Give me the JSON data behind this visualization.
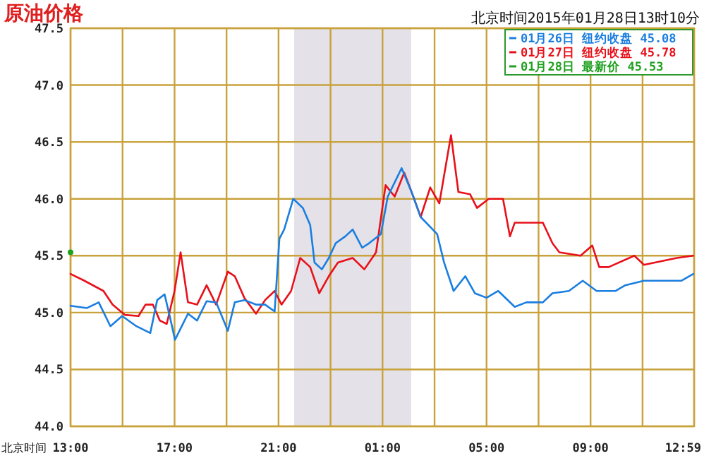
{
  "chart_data": {
    "type": "line",
    "title": "原油价格",
    "subtitle": "北京时间2015年01月28日13时10分",
    "xlabel": "北京时间",
    "xlim": [
      "2015-01-27T13:00",
      "2015-01-28T12:59"
    ],
    "xticks": [
      {
        "value": "2015-01-27T13:00",
        "label": "13:00"
      },
      {
        "value": "2015-01-27T15:00",
        "label": null
      },
      {
        "value": "2015-01-27T17:00",
        "label": "17:00"
      },
      {
        "value": "2015-01-27T19:00",
        "label": null
      },
      {
        "value": "2015-01-27T21:00",
        "label": "21:00"
      },
      {
        "value": "2015-01-27T23:00",
        "label": null
      },
      {
        "value": "2015-01-28T01:00",
        "label": "01:00"
      },
      {
        "value": "2015-01-28T03:00",
        "label": null
      },
      {
        "value": "2015-01-28T05:00",
        "label": "05:00"
      },
      {
        "value": "2015-01-28T07:00",
        "label": null
      },
      {
        "value": "2015-01-28T09:00",
        "label": "09:00"
      },
      {
        "value": "2015-01-28T11:00",
        "label": null
      },
      {
        "value": "2015-01-28T12:59",
        "label": "12:59"
      }
    ],
    "ylim": [
      44.0,
      47.5
    ],
    "yticks": [
      {
        "value": 44.0,
        "label": "44.0"
      },
      {
        "value": 44.5,
        "label": "44.5"
      },
      {
        "value": 45.0,
        "label": "45.0"
      },
      {
        "value": 45.5,
        "label": "45.5"
      },
      {
        "value": 46.0,
        "label": "46.0"
      },
      {
        "value": 46.5,
        "label": "46.5"
      },
      {
        "value": 47.0,
        "label": "47.0"
      },
      {
        "value": 47.5,
        "label": "47.5"
      }
    ],
    "grid": true,
    "legend": "top right",
    "bands": [
      {
        "axis": "x",
        "from": "2015-01-27T21:36",
        "to": "2015-01-28T02:06",
        "color": "#e4e2e8"
      }
    ],
    "series": [
      {
        "name": "01月26日 纽约收盘 45.08",
        "color": "#1a7ee0",
        "x": [
          "2015-01-27T13:00",
          "2015-01-27T13:38",
          "2015-01-27T14:05",
          "2015-01-27T14:32",
          "2015-01-27T14:59",
          "2015-01-27T15:32",
          "2015-01-27T16:04",
          "2015-01-27T16:20",
          "2015-01-27T16:37",
          "2015-01-27T16:50",
          "2015-01-27T17:01",
          "2015-01-27T17:14",
          "2015-01-27T17:31",
          "2015-01-27T17:52",
          "2015-01-27T18:14",
          "2015-01-27T18:36",
          "2015-01-27T19:03",
          "2015-01-27T19:19",
          "2015-01-27T19:41",
          "2015-01-27T20:08",
          "2015-01-27T20:29",
          "2015-01-27T20:51",
          "2015-01-27T21:02",
          "2015-01-27T21:13",
          "2015-01-27T21:34",
          "2015-01-27T21:56",
          "2015-01-27T22:13",
          "2015-01-27T22:23",
          "2015-01-27T22:40",
          "2015-01-27T22:56",
          "2015-01-27T23:12",
          "2015-01-27T23:34",
          "2015-01-27T23:51",
          "2015-01-28T00:13",
          "2015-01-28T00:29",
          "2015-01-28T00:56",
          "2015-01-28T01:12",
          "2015-01-28T01:44",
          "2015-01-28T02:07",
          "2015-01-28T02:28",
          "2015-01-28T03:06",
          "2015-01-28T03:22",
          "2015-01-28T03:44",
          "2015-01-28T04:11",
          "2015-01-28T04:33",
          "2015-01-28T05:00",
          "2015-01-28T05:27",
          "2015-01-28T06:05",
          "2015-01-28T06:32",
          "2015-01-28T07:10",
          "2015-01-28T07:32",
          "2015-01-28T08:10",
          "2015-01-28T08:42",
          "2015-01-28T09:14",
          "2015-01-28T09:58",
          "2015-01-28T10:20",
          "2015-01-28T11:03",
          "2015-01-28T12:30",
          "2015-01-28T12:57"
        ],
        "values": [
          45.06,
          45.04,
          45.09,
          44.88,
          44.97,
          44.88,
          44.82,
          45.11,
          45.16,
          44.95,
          44.76,
          44.86,
          44.99,
          44.93,
          45.1,
          45.09,
          44.84,
          45.09,
          45.11,
          45.07,
          45.07,
          45.01,
          45.65,
          45.73,
          46.0,
          45.92,
          45.77,
          45.44,
          45.38,
          45.48,
          45.61,
          45.67,
          45.73,
          45.57,
          45.61,
          45.69,
          46.02,
          46.27,
          46.06,
          45.84,
          45.69,
          45.44,
          45.19,
          45.32,
          45.17,
          45.13,
          45.19,
          45.05,
          45.09,
          45.09,
          45.17,
          45.19,
          45.28,
          45.19,
          45.19,
          45.24,
          45.28,
          45.28,
          45.34
        ]
      },
      {
        "name": "01月27日 纽约收盘 45.78",
        "color": "#e8101a",
        "x": [
          "2015-01-27T13:00",
          "2015-01-27T13:32",
          "2015-01-27T14:16",
          "2015-01-27T14:37",
          "2015-01-27T15:05",
          "2015-01-27T15:37",
          "2015-01-27T15:53",
          "2015-01-27T16:10",
          "2015-01-27T16:26",
          "2015-01-27T16:42",
          "2015-01-27T17:00",
          "2015-01-27T17:14",
          "2015-01-27T17:31",
          "2015-01-27T17:52",
          "2015-01-27T18:14",
          "2015-01-27T18:36",
          "2015-01-27T19:03",
          "2015-01-27T19:19",
          "2015-01-27T19:41",
          "2015-01-27T20:08",
          "2015-01-27T20:29",
          "2015-01-27T20:51",
          "2015-01-27T21:07",
          "2015-01-27T21:29",
          "2015-01-27T21:50",
          "2015-01-27T22:13",
          "2015-01-27T22:34",
          "2015-01-27T22:56",
          "2015-01-27T23:17",
          "2015-01-27T23:51",
          "2015-01-28T00:18",
          "2015-01-28T00:45",
          "2015-01-28T01:07",
          "2015-01-28T01:28",
          "2015-01-28T01:50",
          "2015-01-28T02:11",
          "2015-01-28T02:28",
          "2015-01-28T02:50",
          "2015-01-28T03:11",
          "2015-01-28T03:38",
          "2015-01-28T03:55",
          "2015-01-28T04:22",
          "2015-01-28T04:38",
          "2015-01-28T05:05",
          "2015-01-28T05:38",
          "2015-01-28T05:54",
          "2015-01-28T06:05",
          "2015-01-28T07:10",
          "2015-01-28T07:32",
          "2015-01-28T07:48",
          "2015-01-28T08:37",
          "2015-01-28T09:04",
          "2015-01-28T09:20",
          "2015-01-28T09:42",
          "2015-01-28T10:41",
          "2015-01-28T11:03",
          "2015-01-28T12:19",
          "2015-01-28T12:57"
        ],
        "values": [
          45.34,
          45.28,
          45.19,
          45.07,
          44.98,
          44.97,
          45.07,
          45.07,
          44.93,
          44.9,
          45.19,
          45.53,
          45.09,
          45.07,
          45.24,
          45.07,
          45.36,
          45.32,
          45.13,
          44.99,
          45.11,
          45.19,
          45.07,
          45.19,
          45.48,
          45.4,
          45.17,
          45.32,
          45.44,
          45.48,
          45.38,
          45.53,
          46.12,
          46.02,
          46.23,
          46.02,
          45.84,
          46.1,
          45.96,
          46.56,
          46.06,
          46.04,
          45.92,
          46.0,
          46.0,
          45.67,
          45.79,
          45.79,
          45.61,
          45.53,
          45.5,
          45.59,
          45.4,
          45.4,
          45.5,
          45.42,
          45.48,
          45.5
        ]
      },
      {
        "name": "01月28日 最新价 45.53",
        "color": "#20a020",
        "type": "scatter",
        "x": [
          "2015-01-27T13:00"
        ],
        "values": [
          45.53
        ]
      }
    ]
  }
}
